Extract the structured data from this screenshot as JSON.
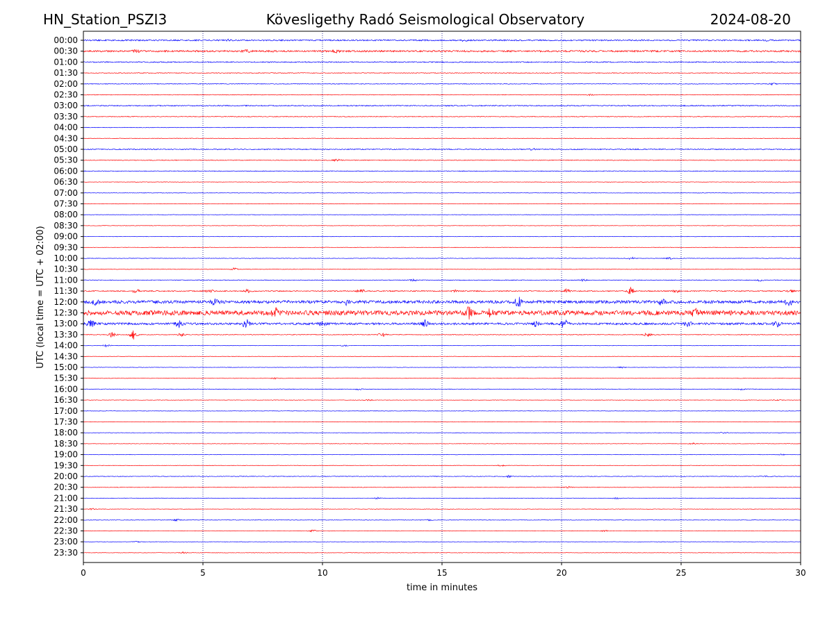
{
  "header": {
    "station": "HN_Station_PSZI3",
    "observatory": "Kövesligethy Radó Seismological Observatory",
    "date": "2024-08-20"
  },
  "chart_data": {
    "type": "line",
    "title": "Kövesligethy Radó Seismological Observatory",
    "xlabel": "time in minutes",
    "ylabel": "UTC (local time = UTC + 02:00)",
    "xlim": [
      0,
      30
    ],
    "x_ticks": [
      "0",
      "5",
      "10",
      "15",
      "20",
      "25",
      "30"
    ],
    "x_tick_values": [
      0,
      5,
      10,
      15,
      20,
      25,
      30
    ],
    "grid": "vertical dotted at each x tick",
    "row_colors": [
      "#0000ff",
      "#ff0000"
    ],
    "series": [
      {
        "label": "00:00",
        "level": 1.6,
        "events": [
          [
            6.1,
            1.5
          ],
          [
            15.9,
            1.8
          ],
          [
            28.6,
            1.5
          ]
        ]
      },
      {
        "label": "00:30",
        "level": 2.0,
        "events": [
          [
            2.2,
            2.5
          ],
          [
            6.8,
            3.5
          ],
          [
            10.6,
            2.5
          ]
        ]
      },
      {
        "label": "01:00",
        "level": 1.2,
        "events": []
      },
      {
        "label": "01:30",
        "level": 0.8,
        "events": []
      },
      {
        "label": "02:00",
        "level": 0.8,
        "events": [
          [
            28.8,
            2
          ]
        ]
      },
      {
        "label": "02:30",
        "level": 0.7,
        "events": [
          [
            21.2,
            1.5
          ]
        ]
      },
      {
        "label": "03:00",
        "level": 1.2,
        "events": []
      },
      {
        "label": "03:30",
        "level": 0.8,
        "events": []
      },
      {
        "label": "04:00",
        "level": 0.6,
        "events": []
      },
      {
        "label": "04:30",
        "level": 0.6,
        "events": []
      },
      {
        "label": "05:00",
        "level": 1.2,
        "events": [
          [
            18.8,
            1.5
          ]
        ]
      },
      {
        "label": "05:30",
        "level": 0.8,
        "events": [
          [
            10.6,
            2.5
          ]
        ]
      },
      {
        "label": "06:00",
        "level": 0.8,
        "events": []
      },
      {
        "label": "06:30",
        "level": 0.5,
        "events": []
      },
      {
        "label": "07:00",
        "level": 0.5,
        "events": []
      },
      {
        "label": "07:30",
        "level": 0.5,
        "events": []
      },
      {
        "label": "08:00",
        "level": 0.5,
        "events": []
      },
      {
        "label": "08:30",
        "level": 0.5,
        "events": []
      },
      {
        "label": "09:00",
        "level": 0.5,
        "events": []
      },
      {
        "label": "09:30",
        "level": 0.5,
        "events": []
      },
      {
        "label": "10:00",
        "level": 0.6,
        "events": [
          [
            22.9,
            3
          ],
          [
            24.5,
            2
          ]
        ]
      },
      {
        "label": "10:30",
        "level": 0.6,
        "events": [
          [
            6.3,
            3
          ]
        ]
      },
      {
        "label": "11:00",
        "level": 0.8,
        "events": [
          [
            13.8,
            2.5
          ],
          [
            20.9,
            2
          ],
          [
            28.3,
            2
          ]
        ]
      },
      {
        "label": "11:30",
        "level": 1.2,
        "events": [
          [
            2.2,
            5
          ],
          [
            5.3,
            4
          ],
          [
            6.9,
            4
          ],
          [
            11.6,
            4
          ],
          [
            15.5,
            3
          ],
          [
            20.2,
            4
          ],
          [
            22.9,
            8
          ],
          [
            24.8,
            3
          ],
          [
            29.6,
            3
          ]
        ]
      },
      {
        "label": "12:00",
        "level": 3.5,
        "events": [
          [
            0.5,
            5
          ],
          [
            5.5,
            5
          ],
          [
            11.0,
            5
          ],
          [
            18.2,
            10
          ],
          [
            24.2,
            6
          ],
          [
            29.5,
            8
          ]
        ]
      },
      {
        "label": "12:30",
        "level": 5.5,
        "events": [
          [
            8.0,
            10
          ],
          [
            16.1,
            14
          ],
          [
            17.0,
            8
          ],
          [
            25.6,
            7
          ]
        ]
      },
      {
        "label": "13:00",
        "level": 2.5,
        "events": [
          [
            0.3,
            8
          ],
          [
            4.0,
            8
          ],
          [
            6.8,
            10
          ],
          [
            10.0,
            6
          ],
          [
            14.3,
            8
          ],
          [
            18.9,
            9
          ],
          [
            20.1,
            9
          ],
          [
            25.3,
            6
          ],
          [
            29.0,
            6
          ]
        ]
      },
      {
        "label": "13:30",
        "level": 0.8,
        "events": [
          [
            1.2,
            6
          ],
          [
            2.1,
            16
          ],
          [
            4.1,
            4
          ],
          [
            12.5,
            5
          ],
          [
            23.6,
            5
          ]
        ]
      },
      {
        "label": "14:00",
        "level": 0.5,
        "events": [
          [
            1.0,
            3
          ],
          [
            10.9,
            2
          ]
        ]
      },
      {
        "label": "14:30",
        "level": 0.5,
        "events": []
      },
      {
        "label": "15:00",
        "level": 0.5,
        "events": [
          [
            22.5,
            1.5
          ]
        ]
      },
      {
        "label": "15:30",
        "level": 0.5,
        "events": [
          [
            8.0,
            1.5
          ]
        ]
      },
      {
        "label": "16:00",
        "level": 0.7,
        "events": [
          [
            11.5,
            1.8
          ],
          [
            27.5,
            1.5
          ]
        ]
      },
      {
        "label": "16:30",
        "level": 0.5,
        "events": [
          [
            11.9,
            1.8
          ],
          [
            29.0,
            1.5
          ]
        ]
      },
      {
        "label": "17:00",
        "level": 0.5,
        "events": []
      },
      {
        "label": "17:30",
        "level": 0.5,
        "events": []
      },
      {
        "label": "18:00",
        "level": 0.5,
        "events": [
          [
            26.8,
            1.5
          ]
        ]
      },
      {
        "label": "18:30",
        "level": 0.5,
        "events": [
          [
            25.5,
            1.5
          ]
        ]
      },
      {
        "label": "19:00",
        "level": 0.5,
        "events": [
          [
            29.2,
            1.5
          ]
        ]
      },
      {
        "label": "19:30",
        "level": 0.5,
        "events": [
          [
            17.5,
            1.5
          ]
        ]
      },
      {
        "label": "20:00",
        "level": 0.7,
        "events": [
          [
            17.8,
            2
          ],
          [
            28.5,
            1.5
          ]
        ]
      },
      {
        "label": "20:30",
        "level": 0.6,
        "events": [
          [
            20.3,
            2
          ]
        ]
      },
      {
        "label": "21:00",
        "level": 0.5,
        "events": [
          [
            12.3,
            1.8
          ],
          [
            22.3,
            1.8
          ]
        ]
      },
      {
        "label": "21:30",
        "level": 0.5,
        "events": [
          [
            0.4,
            2
          ]
        ]
      },
      {
        "label": "22:00",
        "level": 0.6,
        "events": [
          [
            3.9,
            2
          ],
          [
            14.5,
            1.5
          ]
        ]
      },
      {
        "label": "22:30",
        "level": 0.5,
        "events": [
          [
            9.6,
            2
          ],
          [
            21.8,
            2
          ]
        ]
      },
      {
        "label": "23:00",
        "level": 0.5,
        "events": [
          [
            2.2,
            1.5
          ]
        ]
      },
      {
        "label": "23:30",
        "level": 0.5,
        "events": [
          [
            4.2,
            1.5
          ]
        ]
      }
    ]
  }
}
